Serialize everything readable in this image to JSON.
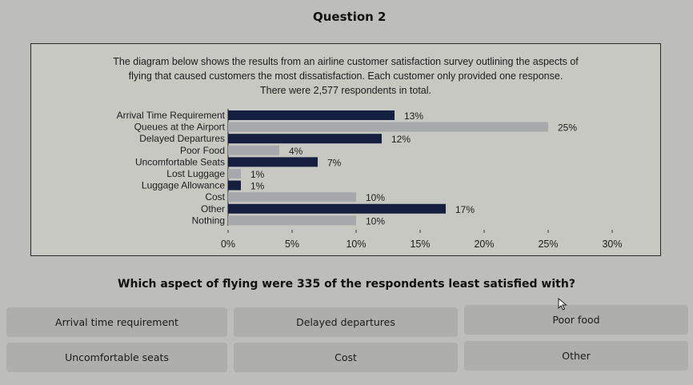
{
  "question_title": "Question 2",
  "description": [
    "The diagram below shows the results from an airline customer satisfaction survey outlining the aspects of",
    "flying that caused customers the most dissatisfaction. Each customer only provided one response.",
    "There were 2,577 respondents in total."
  ],
  "chart_data": {
    "type": "bar",
    "orientation": "horizontal",
    "categories": [
      "Arrival Time Requirement",
      "Queues at the Airport",
      "Delayed Departures",
      "Poor Food",
      "Uncomfortable Seats",
      "Lost Luggage",
      "Luggage Allowance",
      "Cost",
      "Other",
      "Nothing"
    ],
    "values": [
      13,
      25,
      12,
      4,
      7,
      1,
      1,
      10,
      17,
      10
    ],
    "value_labels": [
      "13%",
      "25%",
      "12%",
      "4%",
      "7%",
      "1%",
      "1%",
      "10%",
      "17%",
      "10%"
    ],
    "bar_colors": [
      "#152040",
      "#a6a8ab",
      "#152040",
      "#a6a8ab",
      "#152040",
      "#a6a8ab",
      "#152040",
      "#a6a8ab",
      "#152040",
      "#a6a8ab"
    ],
    "xlim": [
      0,
      30
    ],
    "xticks": [
      0,
      5,
      10,
      15,
      20,
      25,
      30
    ],
    "xtick_labels": [
      "0%",
      "5%",
      "10%",
      "15%",
      "20%",
      "25%",
      "30%"
    ],
    "grid": false
  },
  "prompt": "Which aspect of flying were 335 of the respondents least satisfied with?",
  "options": [
    "Arrival time requirement",
    "Delayed departures",
    "Poor food",
    "Uncomfortable seats",
    "Cost",
    "Other"
  ]
}
